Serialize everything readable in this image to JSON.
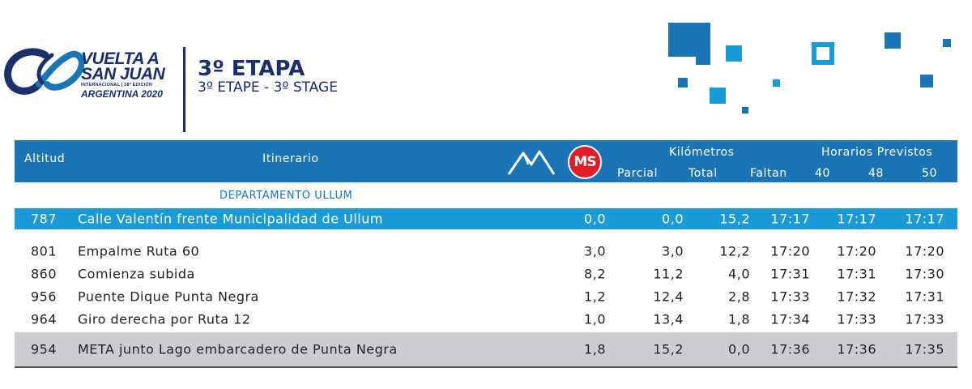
{
  "brand": {
    "line1": "VUELTA A",
    "line2": "SAN JUAN",
    "line3": "INTERNACIONAL | 38º EDICIÓN",
    "line4": "ARGENTINA 2020"
  },
  "stage": {
    "title": "3º ETAPA",
    "subtitle": "3º ETAPE - 3º STAGE"
  },
  "colors": {
    "header_bg": "#1b75b5",
    "highlight_row": "#1b9ad8",
    "final_row": "#cdcdd1",
    "brand_navy": "#1b2f6b",
    "ms_badge": "#e11c24"
  },
  "icons": {
    "mountain": "mountain-icon",
    "ms": "ms-badge-icon"
  },
  "table": {
    "headers": {
      "altitude": "Altitud",
      "itinerary": "Itinerario",
      "ms": "MS",
      "km": "Kilómetros",
      "partial": "Parcial",
      "total": "Total",
      "remaining": "Faltan",
      "schedule": "Horarios Previstos",
      "s40": "40",
      "s48": "48",
      "s50": "50"
    },
    "department": "DEPARTAMENTO ULLUM",
    "rows": [
      {
        "alt": "787",
        "place": "Calle Valentín frente Municipalidad de Ullum",
        "partial": "0,0",
        "total": "0,0",
        "remaining": "15,2",
        "t40": "17:17",
        "t48": "17:17",
        "t50": "17:17"
      },
      {
        "alt": "801",
        "place": "Empalme Ruta 60",
        "partial": "3,0",
        "total": "3,0",
        "remaining": "12,2",
        "t40": "17:20",
        "t48": "17:20",
        "t50": "17:20"
      },
      {
        "alt": "860",
        "place": "Comienza subida",
        "partial": "8,2",
        "total": "11,2",
        "remaining": "4,0",
        "t40": "17:31",
        "t48": "17:31",
        "t50": "17:30"
      },
      {
        "alt": "956",
        "place": "Puente Dique Punta Negra",
        "partial": "1,2",
        "total": "12,4",
        "remaining": "2,8",
        "t40": "17:33",
        "t48": "17:32",
        "t50": "17:31"
      },
      {
        "alt": "964",
        "place": "Giro derecha por Ruta 12",
        "partial": "1,0",
        "total": "13,4",
        "remaining": "1,8",
        "t40": "17:34",
        "t48": "17:33",
        "t50": "17:33"
      },
      {
        "alt": "954",
        "place": "META junto Lago embarcadero de Punta Negra",
        "partial": "1,8",
        "total": "15,2",
        "remaining": "0,0",
        "t40": "17:36",
        "t48": "17:36",
        "t50": "17:35"
      }
    ]
  }
}
